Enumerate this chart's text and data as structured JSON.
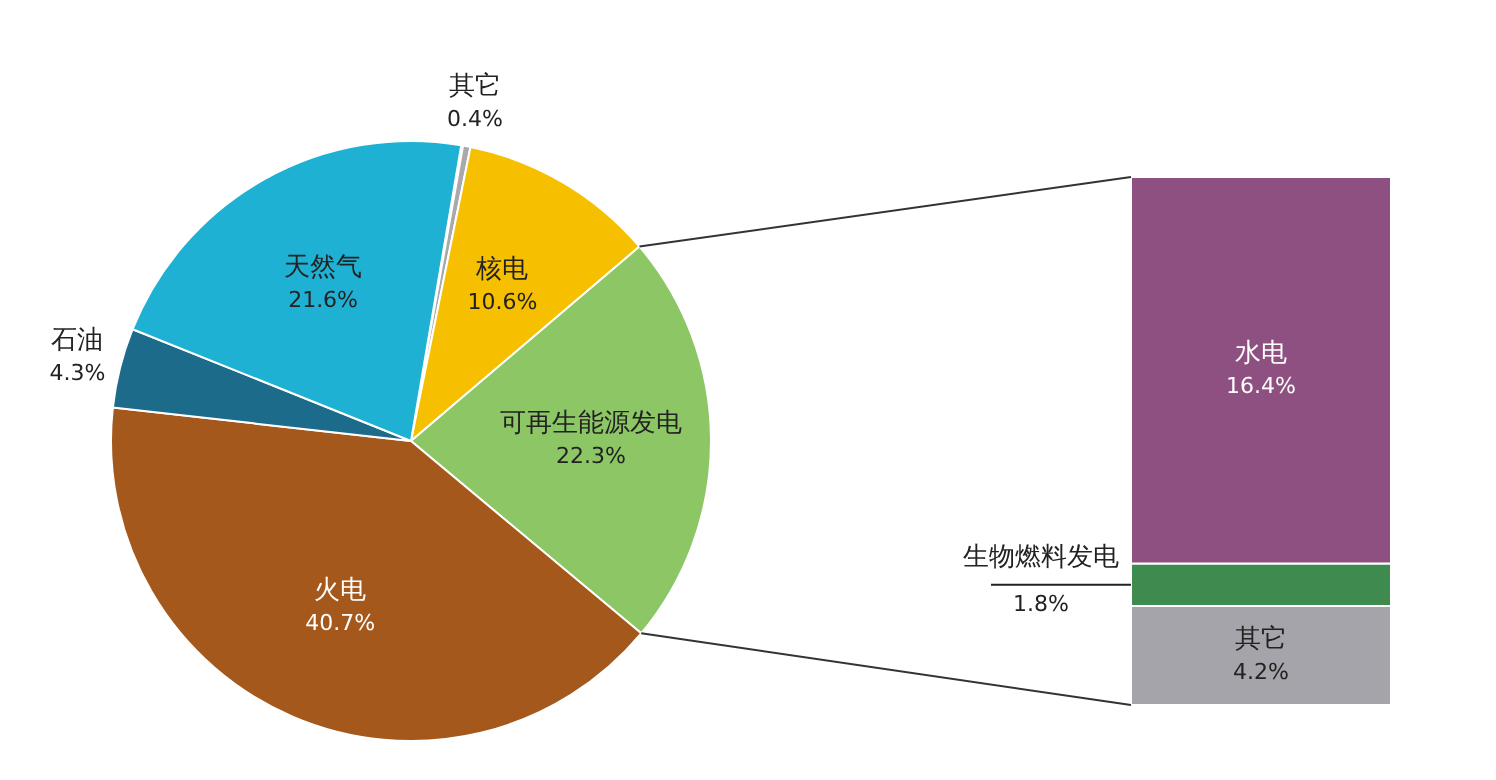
{
  "chart_data": [
    {
      "type": "pie",
      "categories": [
        "其它",
        "核电",
        "可再生能源发电",
        "火电",
        "石油",
        "天然气"
      ],
      "values": [
        0.4,
        10.6,
        22.3,
        40.7,
        4.3,
        21.6
      ],
      "colors": [
        "#a9a9ad",
        "#f6c000",
        "#8cc665",
        "#a5581c",
        "#1d6b8a",
        "#1fb1d4"
      ],
      "value_labels": [
        "0.4%",
        "10.6%",
        "22.3%",
        "40.7%",
        "4.3%",
        "21.6%"
      ]
    },
    {
      "type": "bar",
      "stacked": true,
      "categories": [
        null
      ],
      "series": [
        {
          "name": "其它",
          "color": "#a4a4aa",
          "values": [
            4.2
          ],
          "value_labels": [
            "4.2%"
          ]
        },
        {
          "name": "生物燃料发电",
          "color": "#3f8a4f",
          "values": [
            1.8
          ],
          "value_labels": [
            "1.8%"
          ]
        },
        {
          "name": "水电",
          "color": "#8e5080",
          "values": [
            16.4
          ],
          "value_labels": [
            "16.4%"
          ]
        }
      ]
    }
  ]
}
